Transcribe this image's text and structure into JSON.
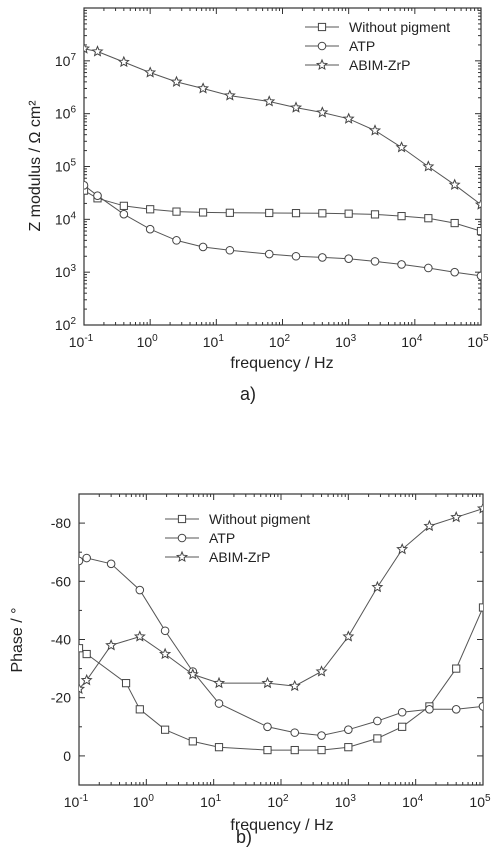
{
  "chart_data": [
    {
      "panel_label": "a)",
      "type": "line",
      "xscale": "log",
      "yscale": "log",
      "xlabel": "frequency / Hz",
      "ylabel": "Z modulus / Ω cm²",
      "xlim": [
        0.1,
        100000
      ],
      "ylim": [
        100,
        100000000
      ],
      "x_ticks": [
        {
          "value": 0.1,
          "base": "10",
          "exp": "-1"
        },
        {
          "value": 1,
          "base": "10",
          "exp": "0"
        },
        {
          "value": 10,
          "base": "10",
          "exp": "1"
        },
        {
          "value": 100,
          "base": "10",
          "exp": "2"
        },
        {
          "value": 1000,
          "base": "10",
          "exp": "3"
        },
        {
          "value": 10000,
          "base": "10",
          "exp": "4"
        },
        {
          "value": 100000,
          "base": "10",
          "exp": "5"
        }
      ],
      "y_ticks": [
        {
          "value": 100,
          "base": "10",
          "exp": "2"
        },
        {
          "value": 1000,
          "base": "10",
          "exp": "3"
        },
        {
          "value": 10000,
          "base": "10",
          "exp": "4"
        },
        {
          "value": 100000,
          "base": "10",
          "exp": "5"
        },
        {
          "value": 1000000,
          "base": "10",
          "exp": "6"
        },
        {
          "value": 10000000,
          "base": "10",
          "exp": "7"
        }
      ],
      "legend_position": "top-right",
      "series": [
        {
          "name": "Without pigment",
          "marker": "square",
          "x": [
            0.1,
            0.16,
            0.4,
            1.0,
            2.5,
            6.3,
            16,
            63,
            160,
            400,
            1000,
            2500,
            6300,
            16000,
            40000,
            100000
          ],
          "y": [
            35000,
            25000,
            18000,
            15500,
            14000,
            13500,
            13300,
            13200,
            13100,
            13000,
            12800,
            12400,
            11500,
            10500,
            8500,
            6000
          ]
        },
        {
          "name": "ATP",
          "marker": "circle",
          "x": [
            0.1,
            0.16,
            0.4,
            1.0,
            2.5,
            6.3,
            16,
            63,
            160,
            400,
            1000,
            2500,
            6300,
            16000,
            40000,
            100000
          ],
          "y": [
            44000,
            28000,
            12500,
            6500,
            4000,
            3000,
            2600,
            2200,
            2000,
            1900,
            1800,
            1600,
            1400,
            1200,
            1000,
            850
          ]
        },
        {
          "name": "ABIM-ZrP",
          "marker": "star",
          "x": [
            0.1,
            0.16,
            0.4,
            1.0,
            2.5,
            6.3,
            16,
            63,
            160,
            400,
            1000,
            2500,
            6300,
            16000,
            40000,
            100000
          ],
          "y": [
            17000000,
            15000000,
            9500000,
            6000000,
            4000000,
            3000000,
            2200000,
            1700000,
            1300000,
            1050000,
            800000,
            480000,
            230000,
            100000,
            45000,
            19000
          ]
        }
      ]
    },
    {
      "panel_label": "b)",
      "type": "line",
      "xscale": "log",
      "yscale": "linear",
      "yinverted": true,
      "xlabel": "frequency / Hz",
      "ylabel": "Phase / °",
      "xlim": [
        0.1,
        100000
      ],
      "ylim": [
        10,
        -90
      ],
      "x_ticks": [
        {
          "value": 0.1,
          "base": "10",
          "exp": "-1"
        },
        {
          "value": 1,
          "base": "10",
          "exp": "0"
        },
        {
          "value": 10,
          "base": "10",
          "exp": "1"
        },
        {
          "value": 100,
          "base": "10",
          "exp": "2"
        },
        {
          "value": 1000,
          "base": "10",
          "exp": "3"
        },
        {
          "value": 10000,
          "base": "10",
          "exp": "4"
        },
        {
          "value": 100000,
          "base": "10",
          "exp": "5"
        }
      ],
      "y_ticks": [
        {
          "value": 0,
          "label": "0"
        },
        {
          "value": -20,
          "label": "-20"
        },
        {
          "value": -40,
          "label": "-40"
        },
        {
          "value": -60,
          "label": "-60"
        },
        {
          "value": -80,
          "label": "-80"
        }
      ],
      "legend_position": "top-center",
      "series": [
        {
          "name": "Without pigment",
          "marker": "square",
          "x": [
            0.1,
            0.13,
            0.5,
            0.8,
            1.9,
            4.9,
            12,
            63,
            160,
            400,
            1000,
            2700,
            6300,
            16000,
            40000,
            100000
          ],
          "y": [
            -37,
            -35,
            -25,
            -16,
            -9,
            -5,
            -3,
            -2,
            -2,
            -2,
            -3,
            -6,
            -10,
            -17,
            -30,
            -51
          ]
        },
        {
          "name": "ATP",
          "marker": "circle",
          "x": [
            0.1,
            0.13,
            0.3,
            0.8,
            1.9,
            4.9,
            12,
            63,
            160,
            400,
            1000,
            2700,
            6300,
            16000,
            40000,
            100000
          ],
          "y": [
            -67,
            -68,
            -66,
            -57,
            -43,
            -29,
            -18,
            -10,
            -8,
            -7,
            -9,
            -12,
            -15,
            -16,
            -16,
            -17
          ]
        },
        {
          "name": "ABIM-ZrP",
          "marker": "star",
          "x": [
            0.1,
            0.13,
            0.3,
            0.8,
            1.9,
            4.9,
            12,
            63,
            160,
            400,
            1000,
            2700,
            6300,
            16000,
            40000,
            100000
          ],
          "y": [
            -23,
            -26,
            -38,
            -41,
            -35,
            -28,
            -25,
            -25,
            -24,
            -29,
            -41,
            -58,
            -71,
            -79,
            -82,
            -85
          ]
        }
      ]
    }
  ]
}
